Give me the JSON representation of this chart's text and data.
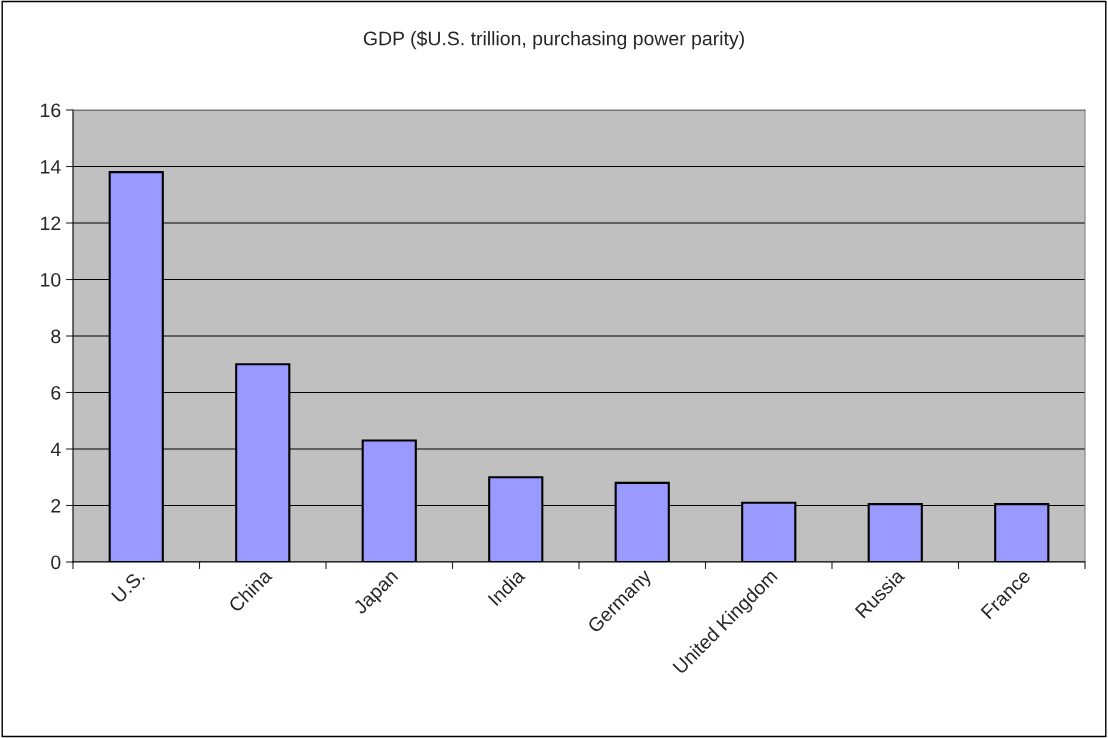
{
  "chart_data": {
    "type": "bar",
    "title": "GDP ($U.S. trillion, purchasing power parity)",
    "categories": [
      "U.S.",
      "China",
      "Japan",
      "India",
      "Germany",
      "United Kingdom",
      "Russia",
      "France"
    ],
    "values": [
      13.8,
      7.0,
      4.3,
      3.0,
      2.8,
      2.1,
      2.05,
      2.05
    ],
    "color": "#9999ff",
    "ylim": [
      0,
      16
    ],
    "yticks": [
      0,
      2,
      4,
      6,
      8,
      10,
      12,
      14,
      16
    ],
    "grid": "y"
  }
}
